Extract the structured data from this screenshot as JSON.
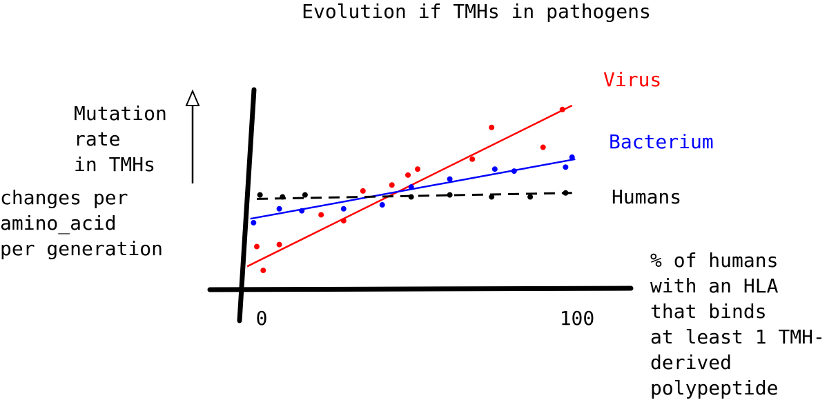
{
  "chart_data": {
    "type": "scatter",
    "title": "Evolution if TMHs in pathogens",
    "ylabel_lines": [
      "Mutation",
      "rate",
      "in TMHs"
    ],
    "yunit_lines": [
      "changes per",
      "amino_acid",
      "per generation"
    ],
    "xlabel_lines": [
      "% of humans",
      "with an HLA",
      "that binds",
      "at least 1 TMH-",
      "derived",
      "polypeptide"
    ],
    "x_ticks": [
      "0",
      "100"
    ],
    "xlim": [
      0,
      100
    ],
    "ylim": [
      0,
      100
    ],
    "grid": false,
    "legend": "direct labels at right end of each series",
    "series": [
      {
        "name": "Virus",
        "color": "#ff0000",
        "points": [
          [
            0,
            21
          ],
          [
            2,
            9
          ],
          [
            7,
            22
          ],
          [
            20,
            37
          ],
          [
            27,
            34
          ],
          [
            33,
            49
          ],
          [
            42,
            52
          ],
          [
            47,
            57
          ],
          [
            50,
            60
          ],
          [
            67,
            65
          ],
          [
            73,
            81
          ],
          [
            89,
            71
          ],
          [
            95,
            90
          ]
        ],
        "trend": {
          "x": [
            -3,
            98
          ],
          "y": [
            11,
            92
          ]
        }
      },
      {
        "name": "Bacterium",
        "color": "#0000ff",
        "points": [
          [
            -1,
            33
          ],
          [
            7,
            40
          ],
          [
            14,
            39
          ],
          [
            27,
            40
          ],
          [
            39,
            42
          ],
          [
            48,
            51
          ],
          [
            60,
            55
          ],
          [
            74,
            60
          ],
          [
            80,
            59
          ],
          [
            96,
            61
          ],
          [
            98,
            66
          ]
        ],
        "trend": {
          "x": [
            -2,
            99
          ],
          "y": [
            35,
            65
          ]
        }
      },
      {
        "name": "Humans",
        "color": "#000000",
        "points": [
          [
            1,
            47
          ],
          [
            8,
            46
          ],
          [
            15,
            47
          ],
          [
            48,
            46
          ],
          [
            60,
            47
          ],
          [
            73,
            46
          ],
          [
            85,
            46
          ],
          [
            96,
            48
          ]
        ],
        "trend": {
          "x": [
            0,
            98
          ],
          "y": [
            45,
            48
          ]
        }
      }
    ]
  }
}
